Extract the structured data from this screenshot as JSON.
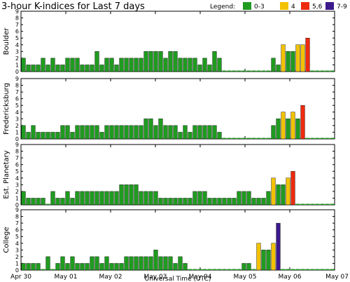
{
  "title": "3-hour K-indices for Last 7 days",
  "legend": {
    "title": "Legend:",
    "items": [
      {
        "label": "0-3",
        "color": "#1f9b1f"
      },
      {
        "label": "4",
        "color": "#f2c200"
      },
      {
        "label": "5,6",
        "color": "#ee2a0e"
      },
      {
        "label": "7-9",
        "color": "#3c1a8c"
      }
    ]
  },
  "x_labels": [
    "Apr 30",
    "May 01",
    "May 02",
    "May 03",
    "May 04",
    "May 05",
    "May 06",
    "May 07"
  ],
  "xlabel": "Universal Time (UTC)",
  "chart_data": [
    {
      "type": "bar",
      "title": "",
      "ylabel": "Boulder",
      "ylim": [
        0,
        9
      ],
      "yticks": [
        0,
        1,
        2,
        3,
        4,
        5,
        6,
        7,
        8,
        9
      ],
      "x_start": "Apr 30 00:00 UT",
      "interval_hours": 3,
      "values": [
        2,
        1,
        1,
        1,
        2,
        1,
        2,
        1,
        1,
        2,
        2,
        2,
        1,
        1,
        1,
        3,
        1,
        2,
        2,
        1,
        2,
        2,
        2,
        2,
        2,
        3,
        3,
        3,
        3,
        2,
        3,
        3,
        2,
        2,
        2,
        2,
        1,
        2,
        1,
        3,
        2,
        0,
        0,
        0,
        0,
        0,
        0,
        0,
        0,
        0,
        0,
        2,
        1,
        4,
        3,
        3,
        4,
        4,
        5,
        0,
        0,
        0,
        0,
        0
      ]
    },
    {
      "type": "bar",
      "title": "",
      "ylabel": "Fredericksburg",
      "ylim": [
        0,
        9
      ],
      "yticks": [
        0,
        1,
        2,
        3,
        4,
        5,
        6,
        7,
        8,
        9
      ],
      "x_start": "Apr 30 00:00 UT",
      "interval_hours": 3,
      "values": [
        2,
        1,
        2,
        1,
        1,
        1,
        1,
        1,
        2,
        2,
        1,
        2,
        2,
        2,
        2,
        2,
        1,
        2,
        2,
        2,
        2,
        2,
        2,
        2,
        2,
        3,
        3,
        2,
        3,
        2,
        2,
        2,
        1,
        2,
        1,
        2,
        2,
        2,
        2,
        2,
        1,
        0,
        0,
        0,
        0,
        0,
        0,
        0,
        0,
        0,
        0,
        2,
        3,
        4,
        3,
        4,
        3,
        5,
        0,
        0,
        0,
        0,
        0,
        0
      ]
    },
    {
      "type": "bar",
      "title": "",
      "ylabel": "Est. Planetary",
      "ylim": [
        0,
        9
      ],
      "yticks": [
        0,
        1,
        2,
        3,
        4,
        5,
        6,
        7,
        8,
        9
      ],
      "x_start": "Apr 30 00:00 UT",
      "interval_hours": 3,
      "values": [
        2,
        1,
        1,
        1,
        1,
        0,
        2,
        1,
        1,
        2,
        1,
        2,
        2,
        2,
        2,
        2,
        2,
        2,
        2,
        2,
        3,
        3,
        3,
        3,
        2,
        2,
        2,
        2,
        1,
        1,
        1,
        1,
        1,
        1,
        1,
        2,
        2,
        2,
        1,
        1,
        1,
        1,
        1,
        1,
        2,
        2,
        2,
        1,
        1,
        1,
        2,
        4,
        3,
        3,
        4,
        5,
        0,
        0,
        0,
        0,
        0,
        0,
        0,
        0
      ]
    },
    {
      "type": "bar",
      "title": "",
      "ylabel": "College",
      "ylim": [
        0,
        9
      ],
      "yticks": [
        0,
        1,
        2,
        3,
        4,
        5,
        6,
        7,
        8,
        9
      ],
      "x_start": "Apr 30 00:00 UT",
      "interval_hours": 3,
      "values": [
        1,
        1,
        1,
        1,
        0,
        2,
        0,
        1,
        2,
        1,
        2,
        1,
        1,
        1,
        2,
        2,
        1,
        2,
        1,
        1,
        1,
        2,
        2,
        2,
        2,
        2,
        2,
        3,
        2,
        2,
        2,
        1,
        2,
        1,
        0,
        0,
        0,
        0,
        0,
        0,
        0,
        0,
        0,
        0,
        0,
        1,
        1,
        0,
        4,
        3,
        3,
        4,
        7,
        0,
        0,
        0,
        0,
        0,
        0,
        0,
        0,
        0,
        0,
        0
      ]
    }
  ]
}
